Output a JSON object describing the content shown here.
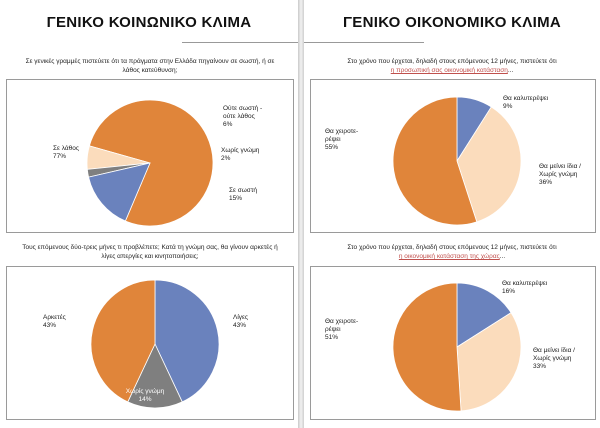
{
  "left_page": {
    "title": "ΓΕΝΙΚΟ ΚΟΙΝΩΝΙΚΟ ΚΛΙΜΑ"
  },
  "right_page": {
    "title": "ΓΕΝΙΚΟ ΟΙΚΟΝΟΜΙΚΟ ΚΛΙΜΑ"
  },
  "questions": {
    "q1_line1": "Σε γενικές γραμμές πιστεύετε ότι τα πράγματα στην Ελλάδα πηγαίνουν σε σωστή, ή σε",
    "q1_line2": "λάθος κατεύθυνση;",
    "q2_line1": "Τους επόμενους δύο-τρεις μήνες τι προβλέπετε; Κατά τη γνώμη σας, θα γίνουν αρκετές ή",
    "q2_line2": "λίγες απεργίες και κινητοποιήσεις;",
    "q3_line1": "Στο χρόνο που έρχεται, δηλαδή στους επόμενους 12 μήνες, πιστεύετε ότι",
    "q3_underlined": "η προσωπική σας οικονομική κατάσταση",
    "q3_tail": "...",
    "q4_line1": "Στο χρόνο που έρχεται, δηλαδή στους επόμενους 12 μήνες, πιστεύετε ότι",
    "q4_underlined": "η οικονομική κατάσταση της χώρας",
    "q4_tail": "..."
  },
  "colors": {
    "orange": "#e0853a",
    "peach": "#fbdcbc",
    "gray": "#7f7f7f",
    "blue": "#6a82bd"
  },
  "chart_data": [
    {
      "id": "direction",
      "type": "pie",
      "title": "",
      "slices": [
        {
          "name": "Σε λάθος",
          "value": 77,
          "label": "77%",
          "color": "#e0853a"
        },
        {
          "name": "Ούτε σωστή - ούτε λάθος",
          "value": 6,
          "label": "6%",
          "color": "#fbdcbc"
        },
        {
          "name": "Χωρίς γνώμη",
          "value": 2,
          "label": "2%",
          "color": "#7f7f7f"
        },
        {
          "name": "Σε σωστή",
          "value": 15,
          "label": "15%",
          "color": "#6a82bd"
        }
      ]
    },
    {
      "id": "strikes",
      "type": "pie",
      "title": "",
      "slices": [
        {
          "name": "Λίγες",
          "value": 43,
          "label": "43%",
          "color": "#6a82bd"
        },
        {
          "name": "Χωρίς γνώμη",
          "value": 14,
          "label": "14%",
          "color": "#7f7f7f"
        },
        {
          "name": "Αρκετές",
          "value": 43,
          "label": "43%",
          "color": "#e0853a"
        }
      ]
    },
    {
      "id": "personal_economy",
      "type": "pie",
      "title": "",
      "slices": [
        {
          "name": "Θα καλυτερέψει",
          "value": 9,
          "label": "9%",
          "color": "#6a82bd"
        },
        {
          "name": "Θα μείνει ίδια / Χωρίς γνώμη",
          "value": 36,
          "label": "36%",
          "color": "#fbdcbc"
        },
        {
          "name": "Θα χειροτε- ρέψει",
          "value": 55,
          "label": "55%",
          "color": "#e0853a"
        }
      ]
    },
    {
      "id": "country_economy",
      "type": "pie",
      "title": "",
      "slices": [
        {
          "name": "Θα καλυτερέψει",
          "value": 16,
          "label": "16%",
          "color": "#6a82bd"
        },
        {
          "name": "Θα μείνει ίδια / Χωρίς γνώμη",
          "value": 33,
          "label": "33%",
          "color": "#fbdcbc"
        },
        {
          "name": "Θα χειροτε- ρέψει",
          "value": 51,
          "label": "51%",
          "color": "#e0853a"
        }
      ]
    }
  ]
}
